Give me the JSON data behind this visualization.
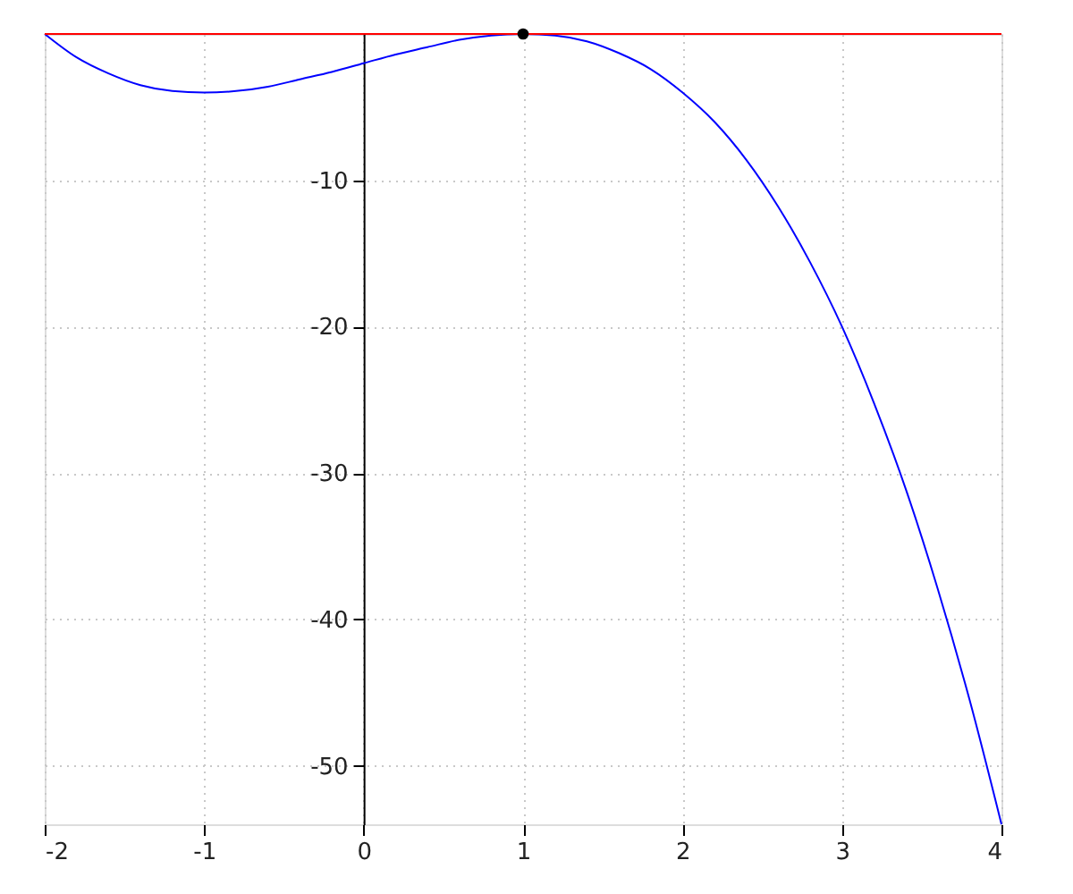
{
  "chart_data": {
    "type": "line",
    "x": [
      -2,
      -1.8,
      -1.6,
      -1.4,
      -1.2,
      -1,
      -0.8,
      -0.6,
      -0.4,
      -0.2,
      0,
      0.2,
      0.4,
      0.6,
      0.8,
      1,
      1.2,
      1.4,
      1.6,
      1.8,
      2,
      2.2,
      2.4,
      2.6,
      2.8,
      3,
      3.2,
      3.4,
      3.6,
      3.8,
      4
    ],
    "series": [
      {
        "color": "#0000ff",
        "values": [
          0,
          -1.6,
          -2.7,
          -3.5,
          -3.9,
          -4,
          -3.9,
          -3.6,
          -3.1,
          -2.6,
          -2,
          -1.4,
          -0.9,
          -0.4,
          -0.1,
          0,
          -0.1,
          -0.5,
          -1.3,
          -2.4,
          -4,
          -6,
          -8.6,
          -11.8,
          -15.6,
          -20,
          -25.2,
          -31.1,
          -37.9,
          -45.5,
          -54
        ]
      },
      {
        "type": "scatter",
        "color": "#000000",
        "marker": "circle",
        "x": [
          1
        ],
        "values": [
          0
        ]
      }
    ],
    "xlim": [
      -2,
      4
    ],
    "ylim": [
      -54,
      0
    ],
    "xticks": [
      -2,
      -1,
      0,
      1,
      2,
      3,
      4
    ],
    "yticks": [
      -50,
      -40,
      -30,
      -20,
      -10
    ],
    "grid": true,
    "ref_lines": [
      {
        "axis": "y",
        "value": 0,
        "color": "#ff0000"
      }
    ]
  }
}
